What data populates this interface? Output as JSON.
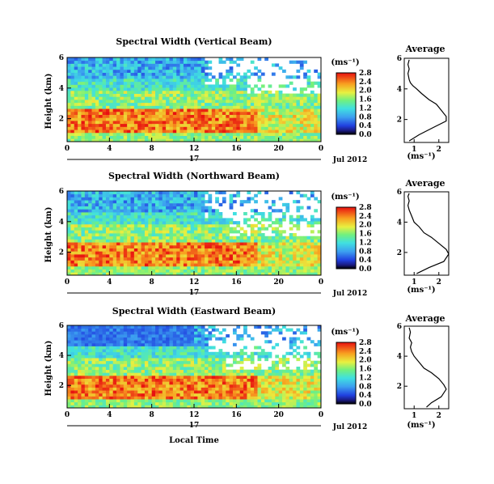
{
  "chart_data": [
    {
      "type": "heatmap",
      "title": "Spectral Width (Vertical Beam)",
      "ylabel": "Height (km)",
      "x_ticks": [
        "0",
        "4",
        "8",
        "12",
        "16",
        "20",
        "0"
      ],
      "y_ticks": [
        "6",
        "4",
        "2"
      ],
      "xlim": [
        0,
        24
      ],
      "ylim": [
        0.5,
        6
      ],
      "date_day": "17",
      "date_label": "Jul 2012",
      "colorbar": {
        "unit": "(ms⁻¹)",
        "min": 0.0,
        "max": 2.8,
        "ticks": [
          "2.8",
          "2.4",
          "2.0",
          "1.6",
          "1.2",
          "0.8",
          "0.4",
          "0.0"
        ]
      },
      "average_profile": {
        "title": "Average",
        "xlabel": "(ms⁻¹)",
        "x_ticks": [
          "1",
          "2"
        ],
        "y_ticks": [
          "6",
          "4",
          "2"
        ],
        "xlim": [
          0.6,
          2.4
        ],
        "ylim": [
          0.5,
          6
        ],
        "width": [
          0.8,
          1.2,
          1.8,
          2.3,
          2.3,
          2.1,
          1.9,
          1.6,
          1.3,
          1.1,
          0.95,
          0.85,
          0.8,
          0.75,
          0.8,
          0.75,
          0.8
        ],
        "height": [
          0.6,
          1.0,
          1.5,
          1.9,
          2.2,
          2.6,
          3.0,
          3.3,
          3.7,
          4.0,
          4.2,
          4.4,
          4.6,
          5.0,
          5.3,
          5.6,
          5.9
        ]
      }
    },
    {
      "type": "heatmap",
      "title": "Spectral Width (Northward Beam)",
      "ylabel": "Height (km)",
      "x_ticks": [
        "0",
        "4",
        "8",
        "12",
        "16",
        "20",
        "0"
      ],
      "y_ticks": [
        "6",
        "4",
        "2"
      ],
      "xlim": [
        0,
        24
      ],
      "ylim": [
        0.5,
        6
      ],
      "date_day": "17",
      "date_label": "Jul 2012",
      "colorbar": {
        "unit": "(ms⁻¹)",
        "min": 0.0,
        "max": 2.8,
        "ticks": [
          "2.8",
          "2.4",
          "2.0",
          "1.6",
          "1.2",
          "0.8",
          "0.4",
          "0.0"
        ]
      },
      "average_profile": {
        "title": "Average",
        "xlabel": "(ms⁻¹)",
        "x_ticks": [
          "1",
          "2"
        ],
        "y_ticks": [
          "6",
          "4",
          "2"
        ],
        "xlim": [
          0.6,
          2.4
        ],
        "ylim": [
          0.5,
          6
        ],
        "width": [
          1.1,
          1.6,
          2.2,
          2.4,
          2.3,
          2.0,
          1.7,
          1.4,
          1.2,
          1.0,
          0.9,
          0.8,
          0.75,
          0.8,
          0.75,
          0.8
        ],
        "height": [
          0.6,
          1.0,
          1.4,
          1.9,
          2.2,
          2.6,
          3.0,
          3.3,
          3.7,
          4.0,
          4.4,
          4.8,
          5.1,
          5.4,
          5.7,
          5.9
        ]
      }
    },
    {
      "type": "heatmap",
      "title": "Spectral Width (Eastward Beam)",
      "ylabel": "Height (km)",
      "x_ticks": [
        "0",
        "4",
        "8",
        "12",
        "16",
        "20",
        "0"
      ],
      "y_ticks": [
        "6",
        "4",
        "2"
      ],
      "xlim": [
        0,
        24
      ],
      "ylim": [
        0.5,
        6
      ],
      "date_day": "17",
      "date_label": "Jul 2012",
      "xlabel": "Local Time",
      "colorbar": {
        "unit": "(ms⁻¹)",
        "min": 0.0,
        "max": 2.8,
        "ticks": [
          "2.8",
          "2.4",
          "2.0",
          "1.6",
          "1.2",
          "0.8",
          "0.4",
          "0.0"
        ]
      },
      "average_profile": {
        "title": "Average",
        "xlabel": "(ms⁻¹)",
        "x_ticks": [
          "1",
          "2"
        ],
        "y_ticks": [
          "6",
          "4",
          "2"
        ],
        "xlim": [
          0.6,
          2.4
        ],
        "ylim": [
          0.5,
          6
        ],
        "width": [
          1.5,
          1.7,
          2.1,
          2.3,
          2.2,
          2.0,
          1.7,
          1.4,
          1.2,
          1.0,
          0.9,
          0.85,
          0.9,
          0.8,
          0.85,
          0.8
        ],
        "height": [
          0.6,
          0.9,
          1.3,
          1.8,
          2.1,
          2.5,
          2.9,
          3.2,
          3.6,
          4.0,
          4.3,
          4.6,
          4.9,
          5.2,
          5.6,
          5.9
        ]
      }
    }
  ]
}
